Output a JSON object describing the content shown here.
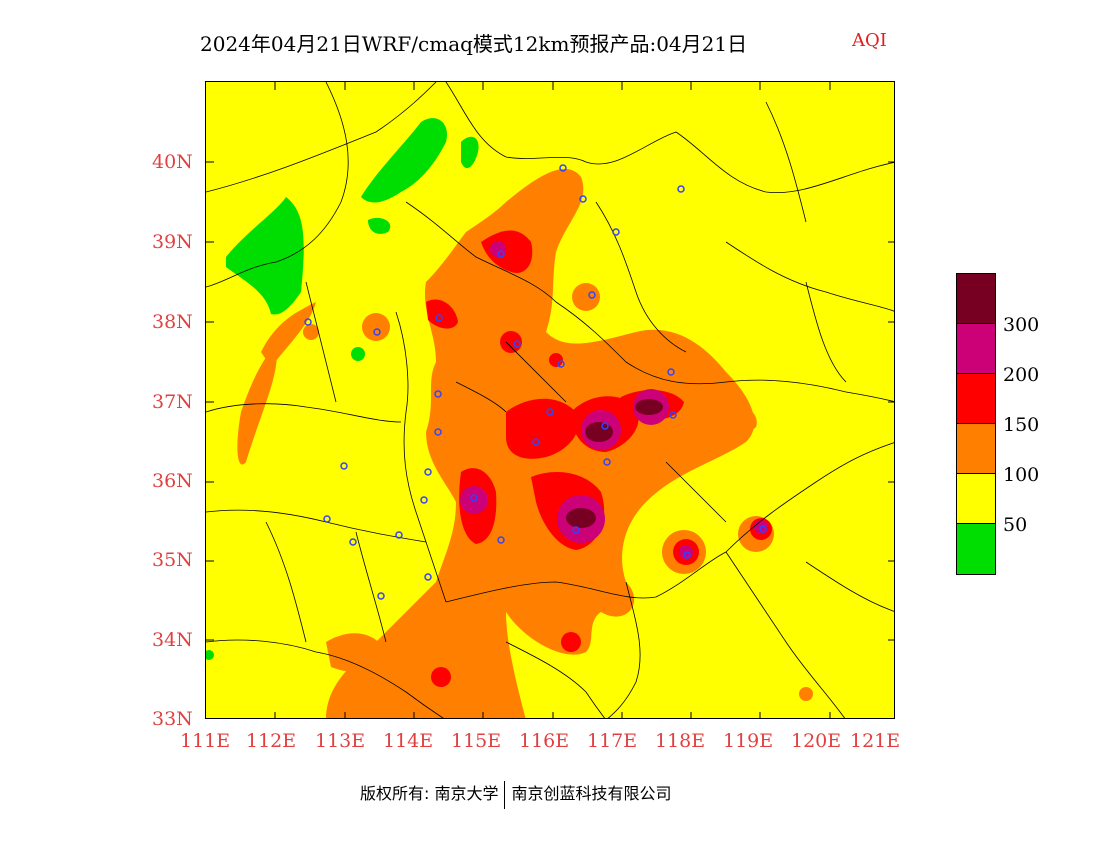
{
  "title": {
    "main": "2024年04月21日WRF/cmaq模式12km预报产品:04月21日",
    "variable": "AQI"
  },
  "colors": {
    "green": "#00dd00",
    "yellow": "#ffff00",
    "orange": "#ff8000",
    "red": "#ff0000",
    "magenta": "#cc0077",
    "darkred": "#770022",
    "tick_text": "#e04040",
    "title_variable": "#e02020",
    "stations": "#3344ff"
  },
  "map": {
    "lon_range": [
      111,
      121.4
    ],
    "lat_range": [
      33,
      41
    ],
    "lat_ticks": [
      "40N",
      "39N",
      "38N",
      "37N",
      "36N",
      "35N",
      "34N",
      "33N"
    ],
    "lon_ticks": [
      "111E",
      "112E",
      "113E",
      "114E",
      "115E",
      "116E",
      "117E",
      "118E",
      "119E",
      "120E",
      "121E"
    ]
  },
  "legend": {
    "bins": [
      {
        "color": "#770022",
        "label": ""
      },
      {
        "color": "#cc0077",
        "label": "300"
      },
      {
        "color": "#ff0000",
        "label": "200"
      },
      {
        "color": "#ff8000",
        "label": "150"
      },
      {
        "color": "#ffff00",
        "label": "100"
      },
      {
        "color": "#00dd00",
        "label": "50"
      }
    ]
  },
  "footer": {
    "left": "版权所有: 南京大学",
    "right": "南京创蓝科技有限公司"
  }
}
